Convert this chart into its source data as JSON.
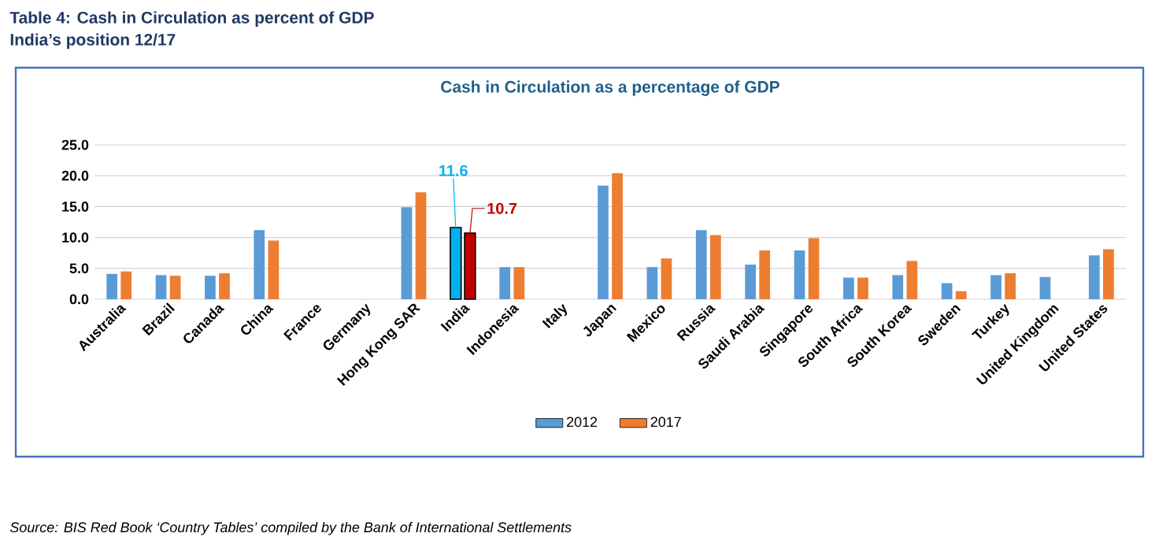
{
  "chart_data": {
    "type": "bar",
    "title": "Cash in Circulation as a percentage of GDP",
    "annotations": [
      "Table 4: Cash in Circulation as percent of GDP",
      "India’s position 12/17",
      "Source: BIS Red Book ‘Country Tables’ compiled by the Bank of International Settlements"
    ],
    "categories": [
      "Australia",
      "Brazil",
      "Canada",
      "China",
      "France",
      "Germany",
      "Hong Kong SAR",
      "India",
      "Indonesia",
      "Italy",
      "Japan",
      "Mexico",
      "Russia",
      "Saudi Arabia",
      "Singapore",
      "South Africa",
      "South Korea",
      "Sweden",
      "Turkey",
      "United Kingdom",
      "United States"
    ],
    "series": [
      {
        "name": "2012",
        "color": "#5b9bd5",
        "colors": [
          "#5b9bd5",
          "#5b9bd5",
          "#5b9bd5",
          "#5b9bd5",
          "#5b9bd5",
          "#5b9bd5",
          "#5b9bd5",
          "#00b0f0",
          "#5b9bd5",
          "#5b9bd5",
          "#5b9bd5",
          "#5b9bd5",
          "#5b9bd5",
          "#5b9bd5",
          "#5b9bd5",
          "#5b9bd5",
          "#5b9bd5",
          "#5b9bd5",
          "#5b9bd5",
          "#5b9bd5",
          "#5b9bd5"
        ],
        "values": [
          4.1,
          3.9,
          3.8,
          11.2,
          null,
          null,
          14.9,
          11.6,
          5.2,
          null,
          18.4,
          5.2,
          11.2,
          5.6,
          7.9,
          3.5,
          3.9,
          2.6,
          3.9,
          3.6,
          7.1
        ],
        "value_labels": [
          null,
          null,
          null,
          null,
          null,
          null,
          null,
          "11.6",
          null,
          null,
          null,
          null,
          null,
          null,
          null,
          null,
          null,
          null,
          null,
          null,
          null
        ]
      },
      {
        "name": "2017",
        "color": "#ed7d31",
        "colors": [
          "#ed7d31",
          "#ed7d31",
          "#ed7d31",
          "#ed7d31",
          "#ed7d31",
          "#ed7d31",
          "#ed7d31",
          "#c00000",
          "#ed7d31",
          "#ed7d31",
          "#ed7d31",
          "#ed7d31",
          "#ed7d31",
          "#ed7d31",
          "#ed7d31",
          "#ed7d31",
          "#ed7d31",
          "#ed7d31",
          "#ed7d31",
          "#ed7d31",
          "#ed7d31"
        ],
        "values": [
          4.5,
          3.8,
          4.2,
          9.5,
          null,
          null,
          17.3,
          10.7,
          5.2,
          null,
          20.4,
          6.6,
          10.4,
          7.9,
          9.9,
          3.5,
          6.2,
          1.3,
          4.2,
          null,
          8.1
        ],
        "value_labels": [
          null,
          null,
          null,
          null,
          null,
          null,
          null,
          "10.7",
          null,
          null,
          null,
          null,
          null,
          null,
          null,
          null,
          null,
          null,
          null,
          null,
          null
        ]
      }
    ],
    "ylim": [
      0,
      25
    ],
    "yticks": [
      {
        "value": 0,
        "label": "0.0"
      },
      {
        "value": 5,
        "label": "5.0"
      },
      {
        "value": 10,
        "label": "10.0"
      },
      {
        "value": 15,
        "label": "15.0"
      },
      {
        "value": 20,
        "label": "20.0"
      },
      {
        "value": 25,
        "label": "25.0"
      }
    ],
    "grid": "y",
    "legend": "bottom"
  }
}
